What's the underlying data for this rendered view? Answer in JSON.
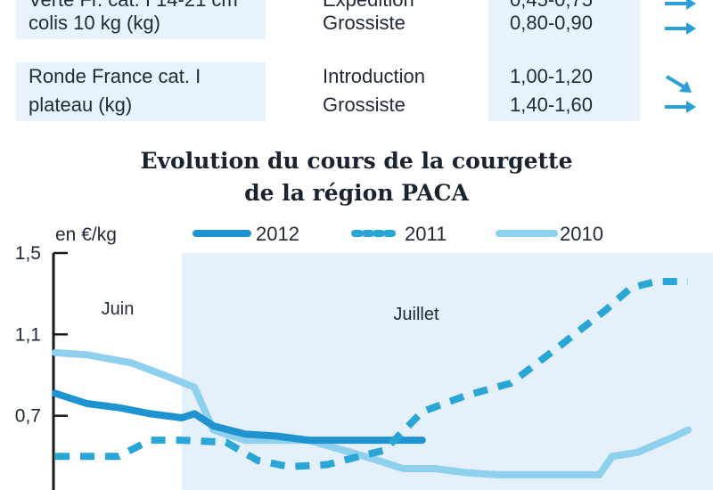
{
  "table": {
    "rows": [
      {
        "product_lines": [
          "Verte Fr. cat. I 14-21 cm",
          "colis 10 kg (kg)"
        ],
        "stages": [
          "Expédition",
          "Grossiste"
        ],
        "prices": [
          "0,45-0,75",
          "0,80-0,90"
        ],
        "trends": [
          "right",
          "right"
        ]
      },
      {
        "product_lines": [
          "Ronde France cat. I",
          "plateau (kg)"
        ],
        "stages": [
          "Introduction",
          "Grossiste"
        ],
        "prices": [
          "1,00-1,20",
          "1,40-1,60"
        ],
        "trends": [
          "down-right",
          "right"
        ]
      }
    ]
  },
  "colors": {
    "band": "#e9f3fb",
    "shade": "#e4f0fa",
    "s2012": "#1f93cf",
    "s2011": "#2aa6d6",
    "s2010": "#8fd0ee",
    "arrow": "#2d9fd6"
  },
  "chart_data": {
    "type": "line",
    "title_lines": [
      "Evolution du cours de la courgette",
      "de la région PACA"
    ],
    "unit_label": "en €/kg",
    "ylim": [
      0.3,
      1.5
    ],
    "yticks": [
      "1,5",
      "1,1",
      "0,7",
      "0,3"
    ],
    "ytick_values": [
      1.5,
      1.1,
      0.7,
      0.3
    ],
    "months": [
      "Juin",
      "Juillet"
    ],
    "legend": [
      "2012",
      "2011",
      "2010"
    ],
    "x_range": [
      0,
      100
    ],
    "july_start": 20,
    "series": [
      {
        "name": "2012",
        "style": "solid",
        "x": [
          0,
          5,
          10,
          15,
          20,
          22,
          25,
          30,
          35,
          40,
          45,
          50,
          55,
          58
        ],
        "y": [
          0.81,
          0.76,
          0.74,
          0.71,
          0.69,
          0.71,
          0.65,
          0.61,
          0.6,
          0.58,
          0.58,
          0.58,
          0.58,
          0.58
        ]
      },
      {
        "name": "2011",
        "style": "dashed",
        "x": [
          0,
          10,
          15,
          20,
          27,
          32,
          37,
          43,
          48,
          52,
          58,
          65,
          72,
          80,
          87,
          91,
          95,
          100
        ],
        "y": [
          0.5,
          0.5,
          0.58,
          0.58,
          0.57,
          0.48,
          0.45,
          0.46,
          0.5,
          0.53,
          0.72,
          0.8,
          0.86,
          1.05,
          1.22,
          1.33,
          1.36,
          1.36
        ]
      },
      {
        "name": "2010",
        "style": "solid",
        "x": [
          0,
          5,
          12,
          18,
          22,
          25,
          30,
          40,
          50,
          55,
          60,
          65,
          70,
          80,
          86,
          88,
          92,
          98,
          100
        ],
        "y": [
          1.01,
          1.0,
          0.96,
          0.89,
          0.84,
          0.63,
          0.58,
          0.58,
          0.49,
          0.44,
          0.44,
          0.42,
          0.41,
          0.41,
          0.41,
          0.5,
          0.52,
          0.6,
          0.63
        ]
      }
    ]
  }
}
